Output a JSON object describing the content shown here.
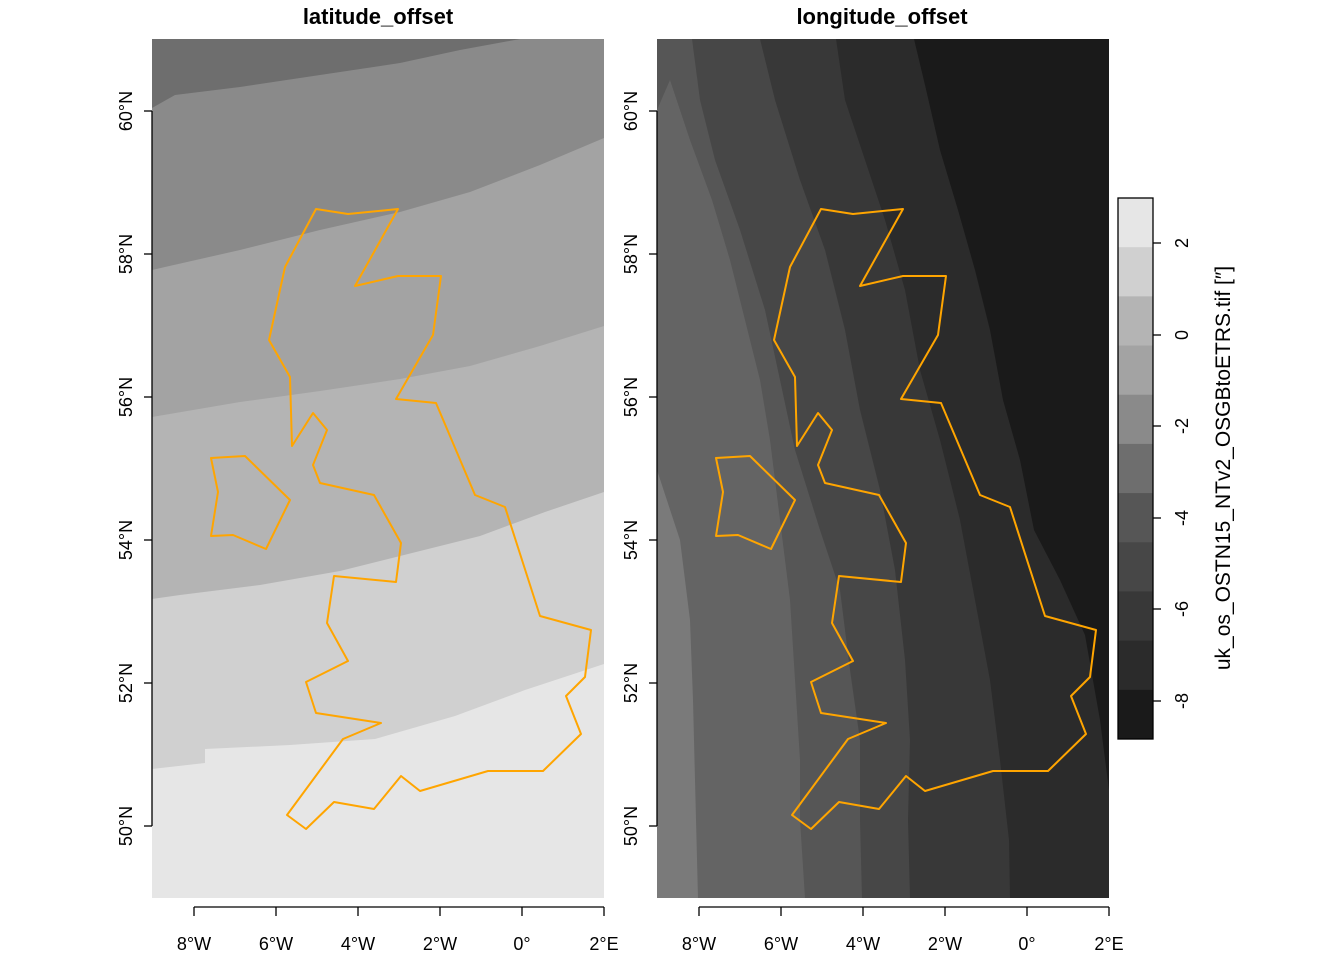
{
  "panels": [
    {
      "id": "latitude",
      "title": "latitude_offset",
      "bands": [
        {
          "fill": "#6e6e6e",
          "upper": null
        },
        {
          "fill": "#8a8a8a",
          "upper": null
        },
        {
          "fill": "#a3a3a3",
          "upper": null
        },
        {
          "fill": "#b4b4b4",
          "upper": null
        },
        {
          "fill": "#d0d0d0",
          "upper": null
        },
        {
          "fill": "#e6e6e6",
          "upper": null
        }
      ]
    },
    {
      "id": "longitude",
      "title": "longitude_offset",
      "bands": [
        {
          "fill": "#7a7a7a"
        },
        {
          "fill": "#646464"
        },
        {
          "fill": "#565656"
        },
        {
          "fill": "#474747"
        },
        {
          "fill": "#383838"
        },
        {
          "fill": "#2b2b2b"
        },
        {
          "fill": "#1a1a1a"
        }
      ]
    }
  ],
  "axes": {
    "lon_ticks": [
      "8°W",
      "6°W",
      "4°W",
      "2°W",
      "0°",
      "2°E"
    ],
    "lat_ticks": [
      "60°N",
      "58°N",
      "56°N",
      "54°N",
      "52°N",
      "50°N"
    ]
  },
  "legend": {
    "title": "uk_os_OSTN15_NTv2_OSGBtoETRS.tif [″]",
    "tick_labels": [
      "2",
      "0",
      "-2",
      "-4",
      "-6",
      "-8"
    ],
    "swatches": [
      "#e6e6e6",
      "#d0d0d0",
      "#b4b4b4",
      "#a3a3a3",
      "#8a8a8a",
      "#6e6e6e",
      "#565656",
      "#474747",
      "#383838",
      "#2b2b2b",
      "#1a1a1a"
    ]
  },
  "colors": {
    "coastline": "#ffa500"
  }
}
